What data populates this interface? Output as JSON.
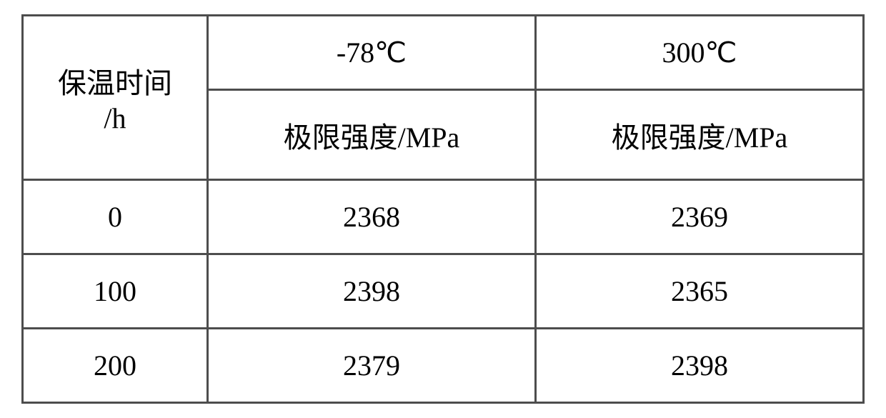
{
  "table": {
    "type": "table",
    "background_color": "#ffffff",
    "border_color": "#4d4d4d",
    "text_color": "#000000",
    "font_family": "SimSun",
    "font_size_pt": 30,
    "column_widths_pct": [
      22,
      39,
      39
    ],
    "row_header_label": "保温时间\n/h",
    "temp_headers": [
      "-78℃",
      "300℃"
    ],
    "sub_headers": [
      "极限强度/MPa",
      "极限强度/MPa"
    ],
    "rows": [
      {
        "time": "0",
        "values": [
          "2368",
          "2369"
        ]
      },
      {
        "time": "100",
        "values": [
          "2398",
          "2365"
        ]
      },
      {
        "time": "200",
        "values": [
          "2379",
          "2398"
        ]
      }
    ]
  }
}
